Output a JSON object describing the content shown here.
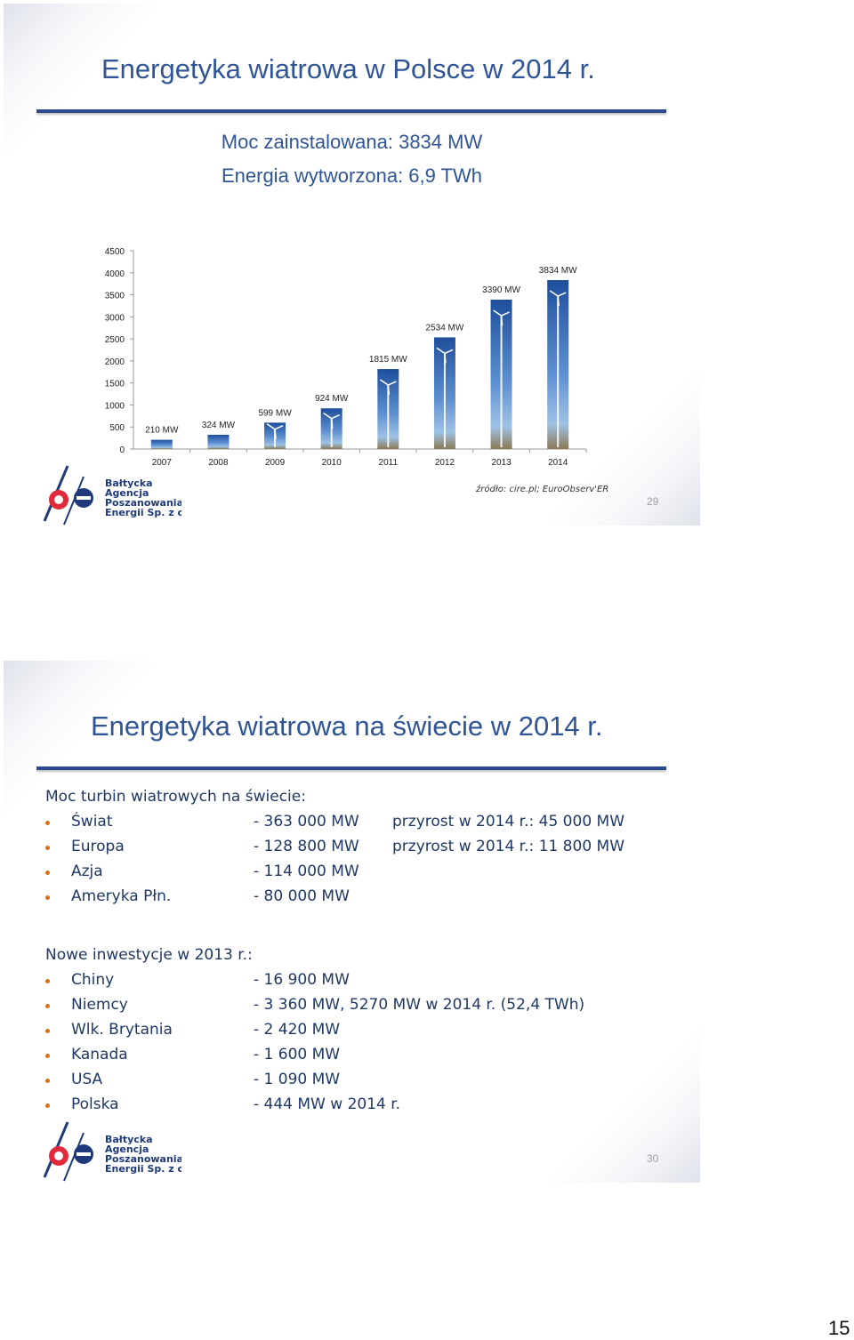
{
  "slide1": {
    "title": "Energetyka wiatrowa w Polsce w 2014 r.",
    "subtitle_line1": "Moc zainstalowana: 3834 MW",
    "subtitle_line2": "Energia wytworzona: 6,9 TWh",
    "source": "źródło: cire.pl; EuroObserv'ER",
    "page_number": "29"
  },
  "chart_data": {
    "type": "bar",
    "title": "",
    "xlabel": "",
    "ylabel": "",
    "categories": [
      "2007",
      "2008",
      "2009",
      "2010",
      "2011",
      "2012",
      "2013",
      "2014"
    ],
    "values": [
      210,
      324,
      599,
      924,
      1815,
      2534,
      3390,
      3834
    ],
    "data_labels": [
      "210 MW",
      "324 MW",
      "599  MW",
      "924 MW",
      "1815 MW",
      "2534 MW",
      "3390 MW",
      "3834 MW"
    ],
    "ylim": [
      0,
      4500
    ],
    "yticks": [
      0,
      500,
      1000,
      1500,
      2000,
      2500,
      3000,
      3500,
      4000,
      4500
    ],
    "grid": false,
    "bar_style": "wind turbine photo columns"
  },
  "logo": {
    "line1": "Bałtycka",
    "line2": "Agencja",
    "line3": "Poszanowania",
    "line4": "Energii Sp. z o.o."
  },
  "slide2": {
    "title": "Energetyka wiatrowa na świecie w 2014 r.",
    "section1_heading": "Moc turbin wiatrowych na świecie:",
    "section1_items": [
      {
        "name": "Świat",
        "value": "- 363 000 MW",
        "extra": "przyrost w 2014 r.: 45 000 MW"
      },
      {
        "name": "Europa",
        "value": "- 128 800 MW",
        "extra": "przyrost w 2014 r.: 11 800 MW"
      },
      {
        "name": "Azja",
        "value": "- 114 000 MW",
        "extra": ""
      },
      {
        "name": "Ameryka Płn.",
        "value": "-  80 000 MW",
        "extra": ""
      }
    ],
    "section2_heading": "Nowe inwestycje w 2013 r.:",
    "section2_items": [
      {
        "name": "Chiny",
        "value": "- 16 900 MW"
      },
      {
        "name": "Niemcy",
        "value": "-  3 360 MW, 5270 MW w 2014 r. (52,4 TWh)"
      },
      {
        "name": "Wlk. Brytania",
        "value": "-  2 420 MW"
      },
      {
        "name": "Kanada",
        "value": "-  1 600 MW"
      },
      {
        "name": "USA",
        "value": "-  1 090 MW"
      },
      {
        "name": "Polska",
        "value": "-    444 MW w 2014 r."
      }
    ],
    "page_number": "30"
  },
  "page_footer": "15"
}
